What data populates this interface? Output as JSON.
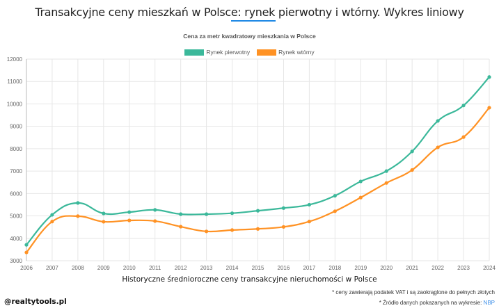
{
  "header": {
    "title": "Transakcyjne ceny mieszkań w Polsce: rynek pierwotny i wtórny. Wykres liniowy",
    "accent": "#1e88e5"
  },
  "chart_data": {
    "type": "line",
    "title": "Cena za metr kwadratowy mieszkania w Polsce",
    "xlabel": "Historyczne średnioroczne ceny transakcyjne nieruchomości w Polsce",
    "ylabel": "",
    "ylim": [
      3000,
      12000
    ],
    "yticks": [
      "3000",
      "4000",
      "5000",
      "6000",
      "7000",
      "8000",
      "9000",
      "10000",
      "11000",
      "12000"
    ],
    "grid": true,
    "legend_position": "top",
    "categories": [
      "2006",
      "2007",
      "2008",
      "2009",
      "2010",
      "2011",
      "2012",
      "2013",
      "2014",
      "2015",
      "2016",
      "2017",
      "2018",
      "2019",
      "2020",
      "2021",
      "2022",
      "2023",
      "2024"
    ],
    "series": [
      {
        "name": "Rynek pierwotny",
        "color": "#3bb89a",
        "values": [
          3710,
          5050,
          5580,
          5110,
          5170,
          5270,
          5080,
          5080,
          5120,
          5230,
          5350,
          5500,
          5900,
          6540,
          7000,
          7880,
          9240,
          9930,
          11200
        ]
      },
      {
        "name": "Rynek wtórny",
        "color": "#ff9224",
        "values": [
          3370,
          4750,
          4990,
          4740,
          4800,
          4770,
          4520,
          4310,
          4370,
          4420,
          4510,
          4750,
          5210,
          5820,
          6470,
          7050,
          8060,
          8520,
          9830
        ]
      }
    ]
  },
  "footer": {
    "note_vat": "* ceny zawierają podatek VAT i są zaokrąglone do pełnych złotych",
    "note_source_prefix": "* Źródło danych pokazanych na wykresie: ",
    "note_source_link": "NBP",
    "brand": "@realtytools.pl"
  }
}
